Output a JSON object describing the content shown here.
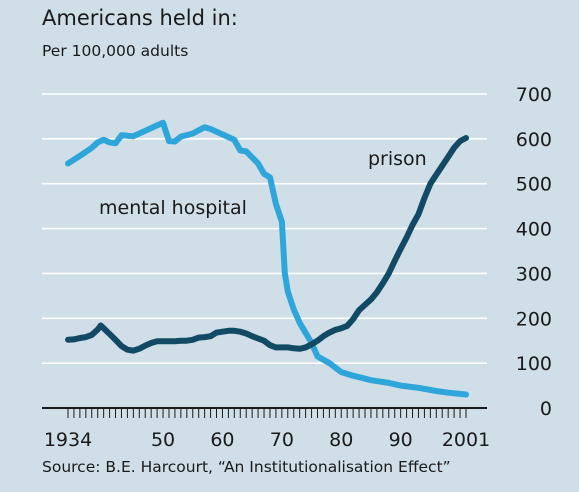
{
  "title": "Americans held in:",
  "subtitle": "Per 100,000 adults",
  "source": "Source: B.E. Harcourt, “An Institutionalisation Effect”",
  "colors": {
    "background": "#cfdee7",
    "mental_hospital": "#2ea6da",
    "prison": "#124a66",
    "grid": "#ffffff",
    "axis": "#1a1a1a"
  },
  "chart_data": {
    "type": "line",
    "xlim": [
      1934,
      2001
    ],
    "ylim": [
      0,
      700
    ],
    "y_axis_side": "right",
    "grid": "horizontal",
    "x_tick_labels": [
      {
        "x": 1934,
        "label": "1934"
      },
      {
        "x": 1950,
        "label": "50"
      },
      {
        "x": 1960,
        "label": "60"
      },
      {
        "x": 1970,
        "label": "70"
      },
      {
        "x": 1980,
        "label": "80"
      },
      {
        "x": 1990,
        "label": "90"
      },
      {
        "x": 2001,
        "label": "2001"
      }
    ],
    "y_ticks": [
      0,
      100,
      200,
      300,
      400,
      500,
      600,
      700
    ],
    "series": [
      {
        "name": "mental hospital",
        "color": "#2ea6da",
        "points": [
          [
            1934,
            545
          ],
          [
            1936,
            562
          ],
          [
            1938,
            580
          ],
          [
            1939,
            592
          ],
          [
            1940,
            598
          ],
          [
            1941,
            592
          ],
          [
            1942,
            590
          ],
          [
            1943,
            608
          ],
          [
            1945,
            606
          ],
          [
            1947,
            618
          ],
          [
            1949,
            630
          ],
          [
            1950,
            636
          ],
          [
            1951,
            595
          ],
          [
            1952,
            594
          ],
          [
            1953,
            605
          ],
          [
            1955,
            612
          ],
          [
            1957,
            626
          ],
          [
            1958,
            622
          ],
          [
            1960,
            610
          ],
          [
            1962,
            598
          ],
          [
            1963,
            574
          ],
          [
            1964,
            572
          ],
          [
            1966,
            545
          ],
          [
            1967,
            522
          ],
          [
            1968,
            514
          ],
          [
            1969,
            455
          ],
          [
            1970,
            415
          ],
          [
            1970.5,
            300
          ],
          [
            1971,
            260
          ],
          [
            1972,
            220
          ],
          [
            1973,
            190
          ],
          [
            1975,
            145
          ],
          [
            1976,
            115
          ],
          [
            1978,
            100
          ],
          [
            1980,
            80
          ],
          [
            1982,
            72
          ],
          [
            1985,
            62
          ],
          [
            1988,
            56
          ],
          [
            1990,
            50
          ],
          [
            1993,
            45
          ],
          [
            1996,
            38
          ],
          [
            1998,
            34
          ],
          [
            2001,
            30
          ]
        ]
      },
      {
        "name": "prison",
        "color": "#124a66",
        "points": [
          [
            1934,
            152
          ],
          [
            1935,
            153
          ],
          [
            1936,
            156
          ],
          [
            1937,
            158
          ],
          [
            1938,
            163
          ],
          [
            1939,
            175
          ],
          [
            1939.5,
            184
          ],
          [
            1940,
            178
          ],
          [
            1941,
            165
          ],
          [
            1942,
            152
          ],
          [
            1943,
            138
          ],
          [
            1944,
            130
          ],
          [
            1945,
            128
          ],
          [
            1946,
            132
          ],
          [
            1947,
            139
          ],
          [
            1948,
            145
          ],
          [
            1949,
            149
          ],
          [
            1950,
            149
          ],
          [
            1951,
            149
          ],
          [
            1952,
            149
          ],
          [
            1953,
            150
          ],
          [
            1954,
            150
          ],
          [
            1955,
            152
          ],
          [
            1956,
            157
          ],
          [
            1957,
            158
          ],
          [
            1958,
            160
          ],
          [
            1959,
            168
          ],
          [
            1960,
            170
          ],
          [
            1961,
            172
          ],
          [
            1962,
            172
          ],
          [
            1963,
            170
          ],
          [
            1964,
            166
          ],
          [
            1965,
            160
          ],
          [
            1966,
            155
          ],
          [
            1967,
            150
          ],
          [
            1968,
            140
          ],
          [
            1969,
            135
          ],
          [
            1970,
            135
          ],
          [
            1971,
            135
          ],
          [
            1972,
            133
          ],
          [
            1973,
            132
          ],
          [
            1974,
            135
          ],
          [
            1975,
            142
          ],
          [
            1976,
            150
          ],
          [
            1977,
            160
          ],
          [
            1978,
            168
          ],
          [
            1979,
            174
          ],
          [
            1980,
            178
          ],
          [
            1981,
            183
          ],
          [
            1982,
            198
          ],
          [
            1983,
            218
          ],
          [
            1984,
            230
          ],
          [
            1985,
            242
          ],
          [
            1986,
            258
          ],
          [
            1987,
            278
          ],
          [
            1988,
            300
          ],
          [
            1989,
            328
          ],
          [
            1990,
            355
          ],
          [
            1991,
            380
          ],
          [
            1992,
            408
          ],
          [
            1993,
            432
          ],
          [
            1994,
            468
          ],
          [
            1995,
            500
          ],
          [
            1996,
            520
          ],
          [
            1997,
            540
          ],
          [
            1998,
            560
          ],
          [
            1999,
            580
          ],
          [
            2000,
            595
          ],
          [
            2001,
            602
          ]
        ]
      }
    ],
    "annotations": [
      {
        "text": "mental hospital",
        "series": "mental hospital"
      },
      {
        "text": "prison",
        "series": "prison"
      }
    ]
  }
}
